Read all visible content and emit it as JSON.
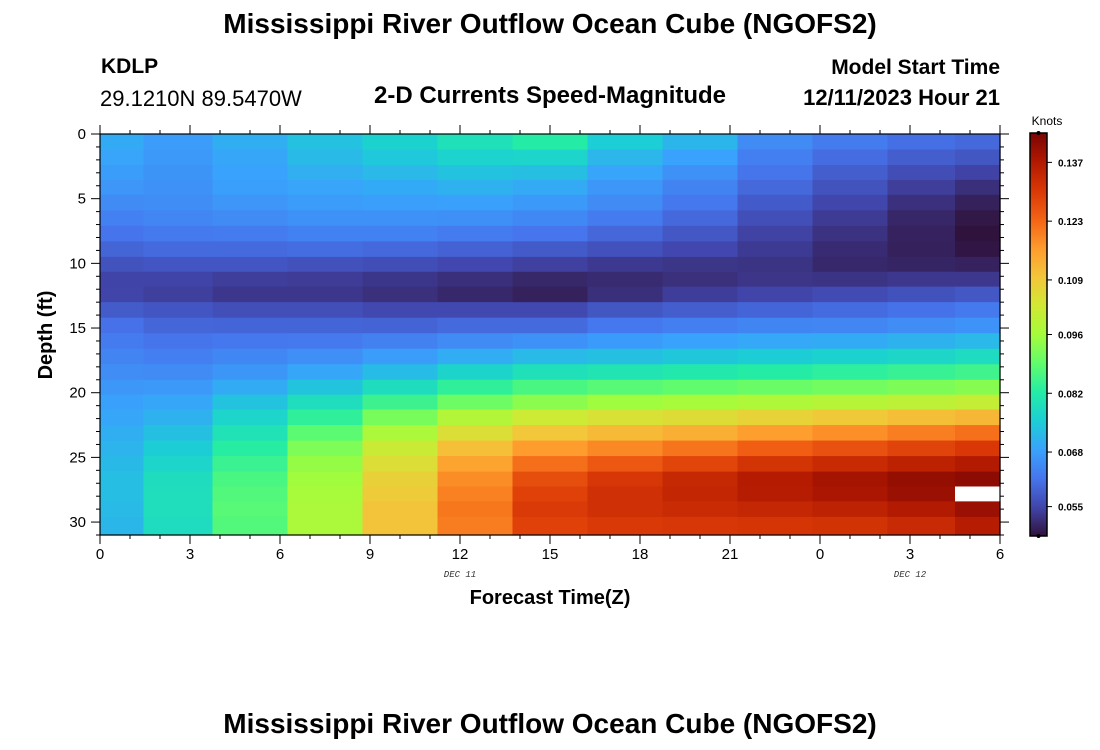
{
  "page": {
    "title": "Mississippi River Outflow Ocean Cube (NGOFS2)",
    "bottom_title": "Mississippi River Outflow Ocean Cube (NGOFS2)",
    "station_id": "KDLP",
    "station_coords": "29.1210N  89.5470W",
    "subtitle": "2-D Currents Speed-Magnitude",
    "model_label": "Model Start Time",
    "model_time": "12/11/2023 Hour 21"
  },
  "chart_data": {
    "type": "heatmap",
    "title": "2-D Currents Speed-Magnitude",
    "xlabel": "Forecast Time(Z)",
    "ylabel": "Depth (ft)",
    "x_ticks": [
      "0",
      "3",
      "6",
      "9",
      "12",
      "15",
      "18",
      "21",
      "0",
      "3",
      "6"
    ],
    "date_labels": [
      {
        "text": "DEC 11",
        "at_hour": 12
      },
      {
        "text": "DEC 12",
        "at_hour": 27
      }
    ],
    "x_range_hours": [
      0,
      30
    ],
    "y_ticks": [
      0,
      5,
      10,
      15,
      20,
      25,
      30
    ],
    "ylim": [
      0,
      31
    ],
    "y_inverted": true,
    "colorbar": {
      "units": "Knots",
      "ticks": [
        0.137,
        0.123,
        0.109,
        0.096,
        0.082,
        0.068,
        0.055
      ],
      "range": [
        0.048,
        0.144
      ]
    },
    "column_centers_hours": [
      0.4,
      2.5,
      5.0,
      7.5,
      10.0,
      12.5,
      15.0,
      17.5,
      20.0,
      22.5,
      25.0,
      27.5,
      29.5
    ],
    "depth_levels_ft": [
      0.6,
      1.8,
      3.0,
      4.1,
      5.3,
      6.5,
      7.7,
      8.9,
      10.1,
      11.2,
      12.4,
      13.6,
      14.8,
      16.0,
      17.2,
      18.4,
      19.6,
      20.7,
      21.9,
      23.1,
      24.3,
      25.5,
      26.7,
      27.8,
      29.0,
      30.2
    ],
    "profile": {
      "depth_ft": [
        0,
        2,
        4,
        6,
        8,
        9.5,
        10.5,
        11.5,
        12.5,
        13.5,
        15,
        17,
        19,
        20.5,
        22,
        23.5,
        25,
        27,
        29,
        31
      ],
      "hours": [
        0,
        2.5,
        5,
        7.5,
        10,
        12.5,
        15,
        17.5,
        20,
        22.5,
        25,
        27.5,
        29.5
      ],
      "speed_knots": [
        [
          0.071,
          0.068,
          0.071,
          0.074,
          0.077,
          0.081,
          0.085,
          0.077,
          0.073,
          0.066,
          0.064,
          0.062,
          0.061
        ],
        [
          0.069,
          0.067,
          0.069,
          0.072,
          0.074,
          0.076,
          0.076,
          0.071,
          0.068,
          0.063,
          0.06,
          0.058,
          0.057
        ],
        [
          0.067,
          0.066,
          0.068,
          0.069,
          0.07,
          0.071,
          0.07,
          0.067,
          0.064,
          0.06,
          0.057,
          0.054,
          0.052
        ],
        [
          0.064,
          0.065,
          0.066,
          0.067,
          0.067,
          0.067,
          0.066,
          0.064,
          0.061,
          0.057,
          0.054,
          0.051,
          0.049
        ],
        [
          0.061,
          0.062,
          0.062,
          0.063,
          0.063,
          0.062,
          0.061,
          0.059,
          0.057,
          0.054,
          0.052,
          0.05,
          0.048
        ],
        [
          0.058,
          0.059,
          0.059,
          0.059,
          0.058,
          0.057,
          0.056,
          0.055,
          0.054,
          0.053,
          0.051,
          0.05,
          0.049
        ],
        [
          0.056,
          0.056,
          0.056,
          0.055,
          0.055,
          0.054,
          0.053,
          0.052,
          0.052,
          0.052,
          0.051,
          0.051,
          0.051
        ],
        [
          0.054,
          0.054,
          0.053,
          0.053,
          0.052,
          0.051,
          0.05,
          0.051,
          0.052,
          0.053,
          0.053,
          0.054,
          0.054
        ],
        [
          0.055,
          0.054,
          0.053,
          0.053,
          0.052,
          0.051,
          0.05,
          0.052,
          0.054,
          0.055,
          0.056,
          0.057,
          0.058
        ],
        [
          0.058,
          0.057,
          0.056,
          0.056,
          0.055,
          0.055,
          0.055,
          0.057,
          0.058,
          0.059,
          0.06,
          0.061,
          0.062
        ],
        [
          0.062,
          0.06,
          0.06,
          0.06,
          0.06,
          0.061,
          0.061,
          0.063,
          0.064,
          0.065,
          0.065,
          0.066,
          0.067
        ],
        [
          0.064,
          0.063,
          0.064,
          0.065,
          0.067,
          0.069,
          0.071,
          0.072,
          0.073,
          0.074,
          0.075,
          0.076,
          0.077
        ],
        [
          0.066,
          0.066,
          0.068,
          0.071,
          0.075,
          0.08,
          0.083,
          0.084,
          0.085,
          0.086,
          0.087,
          0.088,
          0.089
        ],
        [
          0.068,
          0.069,
          0.073,
          0.078,
          0.084,
          0.089,
          0.092,
          0.094,
          0.095,
          0.096,
          0.097,
          0.098,
          0.099
        ],
        [
          0.069,
          0.071,
          0.077,
          0.084,
          0.092,
          0.099,
          0.103,
          0.105,
          0.106,
          0.108,
          0.11,
          0.112,
          0.113
        ],
        [
          0.07,
          0.074,
          0.081,
          0.09,
          0.099,
          0.107,
          0.112,
          0.114,
          0.116,
          0.119,
          0.121,
          0.123,
          0.125
        ],
        [
          0.071,
          0.076,
          0.084,
          0.094,
          0.104,
          0.114,
          0.12,
          0.123,
          0.126,
          0.129,
          0.131,
          0.133,
          0.135
        ],
        [
          0.072,
          0.079,
          0.087,
          0.096,
          0.108,
          0.119,
          0.128,
          0.132,
          0.135,
          0.138,
          0.14,
          0.142,
          0.143
        ],
        [
          0.071,
          0.079,
          0.088,
          0.097,
          0.11,
          0.121,
          0.13,
          0.132,
          0.133,
          0.134,
          0.135,
          0.137,
          0.14
        ],
        [
          0.07,
          0.078,
          0.087,
          0.097,
          0.11,
          0.12,
          0.128,
          0.129,
          0.129,
          0.129,
          0.129,
          0.131,
          0.134
        ]
      ]
    },
    "missing_cells": [
      {
        "hour": 29.5,
        "depth_ft": 27.8
      }
    ]
  },
  "colors": {
    "colormap": [
      "#30123b",
      "#4145ab",
      "#4675ed",
      "#39a2fc",
      "#1bcfd4",
      "#24eca6",
      "#61fc6c",
      "#a4fc3b",
      "#d1e834",
      "#f3c63a",
      "#fe9b2d",
      "#f36315",
      "#d93806",
      "#b11901",
      "#7a0403"
    ],
    "axis": "#000000",
    "background": "#ffffff"
  }
}
